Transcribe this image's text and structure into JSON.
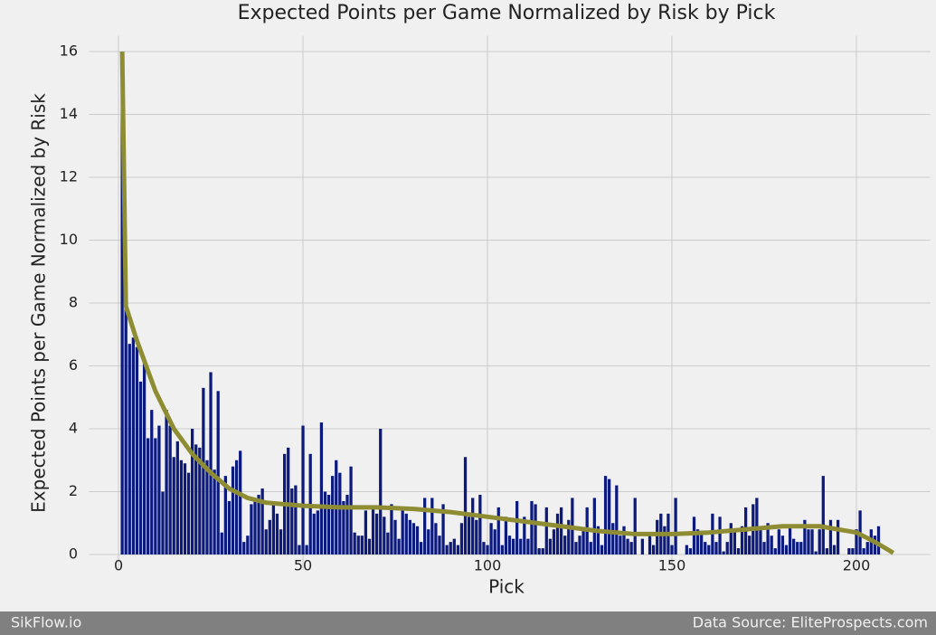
{
  "chart_data": {
    "type": "bar",
    "title": "Expected Points per Game Normalized by Risk by Pick",
    "x_label": "Pick",
    "y_label": "Expected Points per Game Normalized by Risk",
    "x": [
      1,
      2,
      3,
      4,
      5,
      6,
      7,
      8,
      9,
      10,
      11,
      12,
      13,
      14,
      15,
      16,
      17,
      18,
      19,
      20,
      21,
      22,
      23,
      24,
      25,
      26,
      27,
      28,
      29,
      30,
      31,
      32,
      33,
      34,
      35,
      36,
      37,
      38,
      39,
      40,
      41,
      42,
      43,
      44,
      45,
      46,
      47,
      48,
      49,
      50,
      51,
      52,
      53,
      54,
      55,
      56,
      57,
      58,
      59,
      60,
      61,
      62,
      63,
      64,
      65,
      66,
      67,
      68,
      69,
      70,
      71,
      72,
      73,
      74,
      75,
      76,
      77,
      78,
      79,
      80,
      81,
      82,
      83,
      84,
      85,
      86,
      87,
      88,
      89,
      90,
      91,
      92,
      93,
      94,
      95,
      96,
      97,
      98,
      99,
      100,
      101,
      102,
      103,
      104,
      105,
      106,
      107,
      108,
      109,
      110,
      111,
      112,
      113,
      114,
      115,
      116,
      117,
      118,
      119,
      120,
      121,
      122,
      123,
      124,
      125,
      126,
      127,
      128,
      129,
      130,
      131,
      132,
      133,
      134,
      135,
      136,
      137,
      138,
      139,
      140,
      141,
      142,
      143,
      144,
      145,
      146,
      147,
      148,
      149,
      150,
      151,
      152,
      153,
      154,
      155,
      156,
      157,
      158,
      159,
      160,
      161,
      162,
      163,
      164,
      165,
      166,
      167,
      168,
      169,
      170,
      171,
      172,
      173,
      174,
      175,
      176,
      177,
      178,
      179,
      180,
      181,
      182,
      183,
      184,
      185,
      186,
      187,
      188,
      189,
      190,
      191,
      192,
      193,
      194,
      195,
      196,
      197,
      198,
      199,
      200,
      201,
      202,
      203,
      204,
      205,
      206,
      207
    ],
    "values": [
      16,
      7.9,
      6.7,
      6.9,
      6.6,
      5.5,
      6.1,
      3.7,
      4.6,
      3.7,
      4.1,
      2.0,
      4.6,
      4.1,
      3.1,
      3.6,
      3.0,
      2.9,
      2.6,
      4.0,
      3.5,
      3.4,
      5.3,
      3.0,
      5.8,
      2.7,
      5.2,
      0.7,
      2.5,
      1.7,
      2.8,
      3.0,
      3.3,
      0.4,
      0.6,
      1.6,
      1.7,
      1.9,
      2.1,
      0.8,
      1.1,
      1.6,
      1.3,
      0.8,
      3.2,
      3.4,
      2.1,
      2.2,
      0.3,
      4.1,
      0.3,
      3.2,
      1.3,
      1.4,
      4.2,
      2.0,
      1.9,
      2.5,
      3.0,
      2.6,
      1.7,
      1.9,
      2.8,
      0.7,
      0.6,
      0.6,
      1.4,
      0.5,
      1.5,
      1.3,
      4.0,
      1.2,
      0.7,
      1.6,
      1.1,
      0.5,
      1.4,
      1.3,
      1.1,
      1.0,
      0.9,
      0.4,
      1.8,
      0.8,
      1.8,
      1.0,
      0.6,
      1.6,
      0.3,
      0.4,
      0.5,
      0.3,
      1.0,
      3.1,
      1.2,
      1.8,
      1.1,
      1.9,
      0.4,
      0.3,
      1.0,
      0.8,
      1.5,
      0.3,
      1.2,
      0.6,
      0.5,
      1.7,
      0.5,
      1.2,
      0.5,
      1.7,
      1.6,
      0.2,
      0.2,
      1.5,
      0.5,
      0.8,
      1.3,
      1.5,
      0.6,
      1.1,
      1.8,
      0.4,
      0.6,
      0.8,
      1.5,
      0.4,
      1.8,
      0.9,
      0.3,
      2.5,
      2.4,
      1.0,
      2.2,
      0.6,
      0.9,
      0.5,
      0.4,
      1.8,
      0.0,
      0.5,
      0.0,
      0.6,
      0.3,
      1.1,
      1.3,
      0.9,
      1.3,
      0.3,
      1.8,
      0.0,
      0.0,
      0.3,
      0.2,
      1.2,
      0.8,
      0.7,
      0.4,
      0.3,
      1.3,
      0.4,
      1.2,
      0.1,
      0.4,
      1.0,
      0.8,
      0.2,
      0.9,
      1.5,
      0.6,
      1.6,
      1.8,
      0.9,
      0.4,
      1.0,
      0.6,
      0.2,
      0.8,
      0.6,
      0.3,
      0.9,
      0.5,
      0.4,
      0.4,
      1.1,
      0.8,
      0.8,
      0.1,
      0.8,
      2.5,
      0.2,
      1.1,
      0.3,
      1.1,
      0.0,
      0.0,
      0.2,
      0.2,
      0.8,
      1.4,
      0.2,
      0.4,
      0.8,
      0.6,
      0.9,
      0.0
    ],
    "color": "#0c1a7d",
    "trend": {
      "type": "line",
      "color": "#8f8d33",
      "x": [
        1,
        2,
        5,
        10,
        15,
        20,
        25,
        30,
        35,
        40,
        50,
        60,
        70,
        80,
        90,
        100,
        110,
        120,
        130,
        140,
        150,
        160,
        170,
        180,
        190,
        200,
        205,
        210
      ],
      "values": [
        16,
        7.9,
        6.8,
        5.2,
        4.0,
        3.2,
        2.6,
        2.1,
        1.8,
        1.65,
        1.55,
        1.5,
        1.5,
        1.45,
        1.35,
        1.2,
        1.05,
        0.9,
        0.75,
        0.65,
        0.65,
        0.7,
        0.8,
        0.9,
        0.9,
        0.7,
        0.4,
        0.05
      ]
    },
    "xlim": [
      -8,
      220
    ],
    "ylim": [
      -0.5,
      16.5
    ],
    "xticks": [
      0,
      50,
      100,
      150,
      200
    ],
    "yticks": [
      0,
      2,
      4,
      6,
      8,
      10,
      12,
      14,
      16
    ],
    "grid": true
  },
  "footer": {
    "left": "SikFlow.io",
    "right": "Data Source: EliteProspects.com"
  }
}
